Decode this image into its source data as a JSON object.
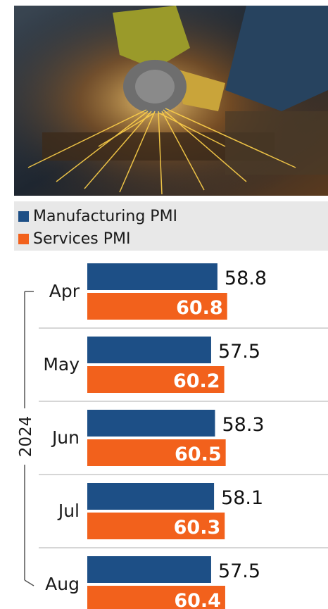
{
  "colors": {
    "manufacturing": "#1d4f86",
    "services": "#f2611c",
    "separator": "#c9c9c9",
    "bracket": "#555555"
  },
  "photo": {
    "icon": "angle-grinder-sparks-photo"
  },
  "chart_data": {
    "type": "bar",
    "orientation": "horizontal",
    "group_label": "2024",
    "categories": [
      "Apr",
      "May",
      "Jun",
      "Jul",
      "Aug"
    ],
    "series": [
      {
        "name": "Manufacturing PMI",
        "values": [
          58.8,
          57.5,
          58.3,
          58.1,
          57.5
        ]
      },
      {
        "name": "Services PMI",
        "values": [
          60.8,
          60.2,
          60.5,
          60.3,
          60.4
        ]
      }
    ],
    "legend_position": "top-left",
    "grid": false
  }
}
